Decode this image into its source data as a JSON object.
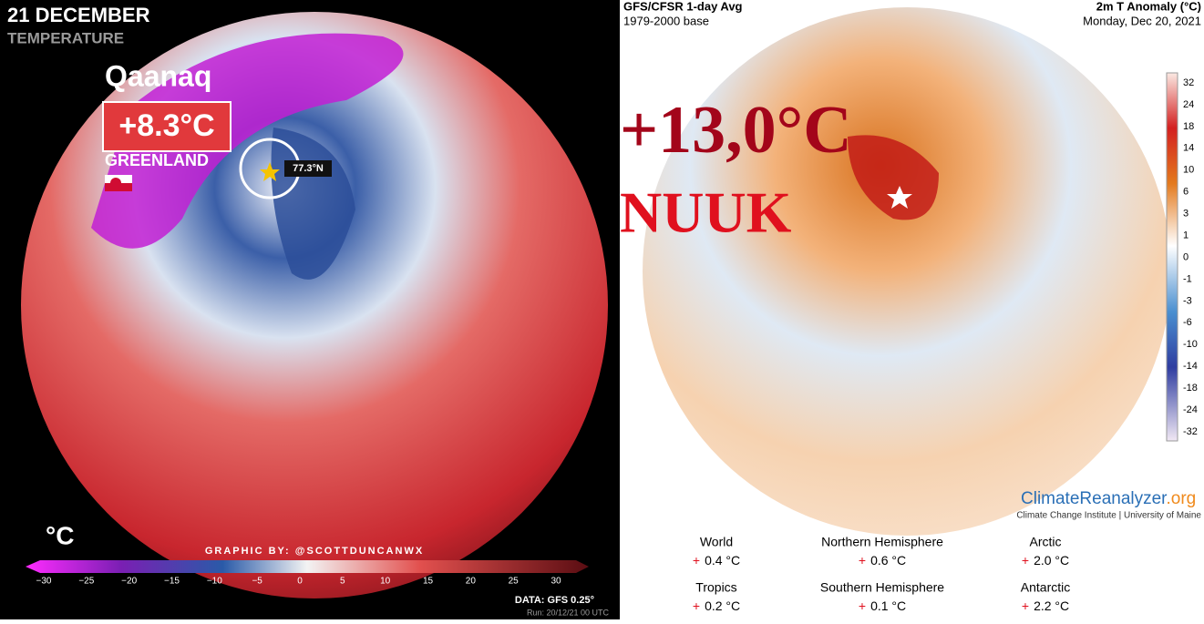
{
  "left_panel": {
    "date": "21 DECEMBER",
    "subtitle": "TEMPERATURE",
    "place": "Qaanaq",
    "temperature": "+8.3°C",
    "country": "GREENLAND",
    "latitude": "77.3°N",
    "unit": "°C",
    "credit": "GRAPHIC BY: @SCOTTDUNCANWX",
    "colorbar_ticks": [
      "−30",
      "−25",
      "−20",
      "−15",
      "−10",
      "−5",
      "0",
      "5",
      "10",
      "15",
      "20",
      "25",
      "30"
    ],
    "data_source": "DATA: GFS 0.25°",
    "run": "Run: 20/12/21 00 UTC"
  },
  "right_panel": {
    "source": "GFS/CFSR 1-day Avg",
    "base": "1979-2000 base",
    "title": "2m T Anomaly (°C)",
    "date": "Monday, Dec 20, 2021",
    "overlay_value": "+13,0°C",
    "overlay_place": "NUUK",
    "colorbar_ticks": [
      "32",
      "24",
      "18",
      "14",
      "10",
      "6",
      "3",
      "1",
      "0",
      "-1",
      "-3",
      "-6",
      "-10",
      "-14",
      "-18",
      "-24",
      "-32"
    ],
    "brand_main": "ClimateReanalyzer",
    "brand_suffix": ".org",
    "institute": "Climate Change Institute | University of Maine",
    "stats": [
      {
        "region": "World",
        "sign": "+",
        "value": "0.4 °C"
      },
      {
        "region": "Northern Hemisphere",
        "sign": "+",
        "value": "0.6 °C"
      },
      {
        "region": "Arctic",
        "sign": "+",
        "value": "2.0 °C"
      },
      {
        "region": "Tropics",
        "sign": "+",
        "value": "0.2 °C"
      },
      {
        "region": "Southern Hemisphere",
        "sign": "+",
        "value": "0.1 °C"
      },
      {
        "region": "Antarctic",
        "sign": "+",
        "value": "2.2 °C"
      }
    ]
  }
}
